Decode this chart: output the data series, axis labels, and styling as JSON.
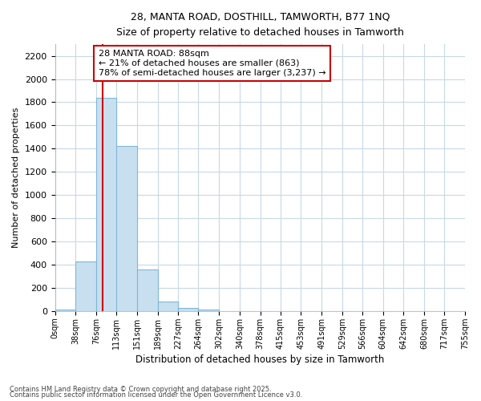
{
  "title_line1": "28, MANTA ROAD, DOSTHILL, TAMWORTH, B77 1NQ",
  "title_line2": "Size of property relative to detached houses in Tamworth",
  "xlabel": "Distribution of detached houses by size in Tamworth",
  "ylabel": "Number of detached properties",
  "bar_edges": [
    0,
    38,
    76,
    113,
    151,
    189,
    227,
    264,
    302,
    340,
    378,
    415,
    453,
    491,
    529,
    566,
    604,
    642,
    680,
    717,
    755
  ],
  "bar_heights": [
    10,
    430,
    1840,
    1420,
    360,
    80,
    30,
    10,
    0,
    0,
    0,
    0,
    0,
    0,
    0,
    0,
    0,
    0,
    0,
    0
  ],
  "bar_color": "#c8dff0",
  "bar_edge_color": "#7db8d8",
  "property_size": 88,
  "annotation_text": "28 MANTA ROAD: 88sqm\n← 21% of detached houses are smaller (863)\n78% of semi-detached houses are larger (3,237) →",
  "vline_color": "#cc0000",
  "annotation_box_color": "#cc0000",
  "annotation_text_color": "#000000",
  "ylim": [
    0,
    2300
  ],
  "yticks": [
    0,
    200,
    400,
    600,
    800,
    1000,
    1200,
    1400,
    1600,
    1800,
    2000,
    2200
  ],
  "background_color": "#ffffff",
  "grid_color": "#c8d8e8",
  "footer_line1": "Contains HM Land Registry data © Crown copyright and database right 2025.",
  "footer_line2": "Contains public sector information licensed under the Open Government Licence v3.0."
}
